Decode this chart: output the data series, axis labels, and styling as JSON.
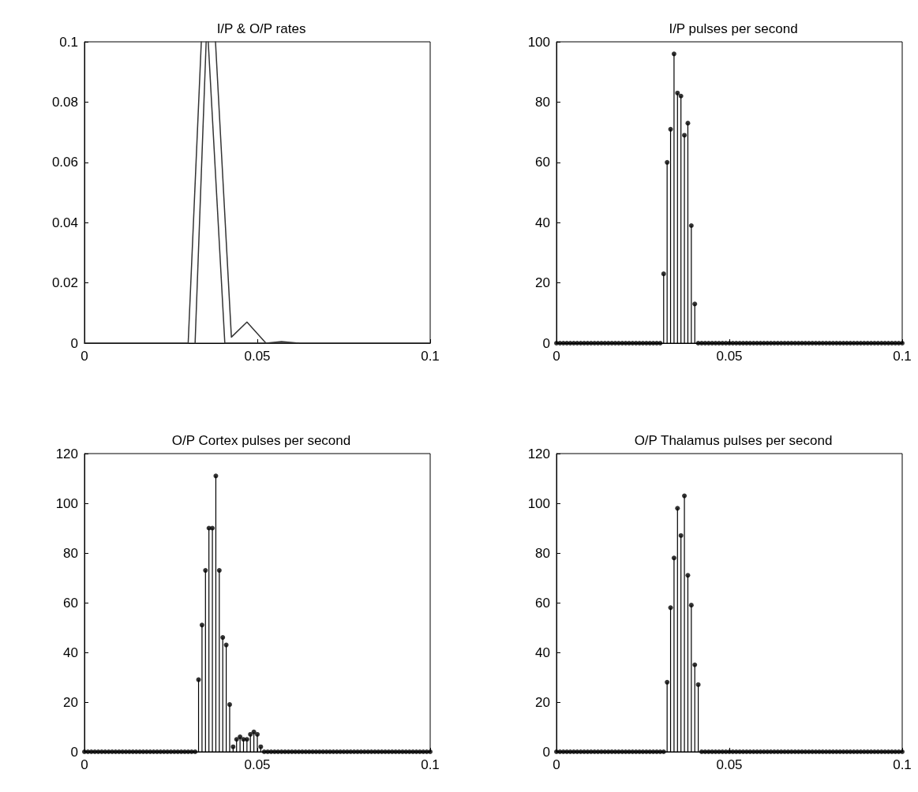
{
  "chart_data": [
    {
      "type": "line",
      "title": "I/P & O/P rates",
      "marker": "none",
      "xlim": [
        0,
        0.1
      ],
      "xticks": [
        0,
        0.05,
        0.1
      ],
      "ylim": [
        0,
        0.1
      ],
      "yticks": [
        0,
        0.02,
        0.04,
        0.06,
        0.08,
        0.1
      ],
      "series": [
        {
          "color": "#333333",
          "x": [
            0,
            0.03,
            0.0338,
            0.035,
            0.0358,
            0.0406,
            0.1
          ],
          "values": [
            0,
            0,
            0.1,
            null,
            0.1,
            0,
            0
          ]
        },
        {
          "color": "#333333",
          "x": [
            0.032,
            0.0352,
            0.037,
            0.0379,
            0.0425,
            0.047,
            0.0525,
            0.057,
            0.062
          ],
          "values": [
            0,
            0.1,
            null,
            0.1,
            0.002,
            0.007,
            0,
            0.0005,
            0
          ]
        }
      ]
    },
    {
      "type": "lollipop",
      "title": "I/P pulses per second",
      "marker": "circle",
      "xlim": [
        0,
        0.1
      ],
      "xticks": [
        0,
        0.05,
        0.1
      ],
      "ylim": [
        0,
        100
      ],
      "yticks": [
        0,
        20,
        40,
        60,
        80,
        100
      ],
      "x": [
        0,
        0.001,
        0.002,
        0.003,
        0.004,
        0.005,
        0.006,
        0.007,
        0.008,
        0.009,
        0.01,
        0.011,
        0.012,
        0.013,
        0.014,
        0.015,
        0.016,
        0.017,
        0.018,
        0.019,
        0.02,
        0.021,
        0.022,
        0.023,
        0.024,
        0.025,
        0.026,
        0.027,
        0.028,
        0.029,
        0.03,
        0.031,
        0.032,
        0.033,
        0.034,
        0.035,
        0.036,
        0.037,
        0.038,
        0.039,
        0.04,
        0.041,
        0.042,
        0.043,
        0.044,
        0.045,
        0.046,
        0.047,
        0.048,
        0.049,
        0.05,
        0.051,
        0.052,
        0.053,
        0.054,
        0.055,
        0.056,
        0.057,
        0.058,
        0.059,
        0.06,
        0.061,
        0.062,
        0.063,
        0.064,
        0.065,
        0.066,
        0.067,
        0.068,
        0.069,
        0.07,
        0.071,
        0.072,
        0.073,
        0.074,
        0.075,
        0.076,
        0.077,
        0.078,
        0.079,
        0.08,
        0.081,
        0.082,
        0.083,
        0.084,
        0.085,
        0.086,
        0.087,
        0.088,
        0.089,
        0.09,
        0.091,
        0.092,
        0.093,
        0.094,
        0.095,
        0.096,
        0.097,
        0.098,
        0.099,
        0.1
      ],
      "series": [
        {
          "color": "#000000",
          "values": [
            0,
            0,
            0,
            0,
            0,
            0,
            0,
            0,
            0,
            0,
            0,
            0,
            0,
            0,
            0,
            0,
            0,
            0,
            0,
            0,
            0,
            0,
            0,
            0,
            0,
            0,
            0,
            0,
            0,
            0,
            0,
            23,
            60,
            71,
            96,
            83,
            82,
            69,
            73,
            39,
            13,
            0,
            0,
            0,
            0,
            0,
            0,
            0,
            0,
            0,
            0,
            0,
            0,
            0,
            0,
            0,
            0,
            0,
            0,
            0,
            0,
            0,
            0,
            0,
            0,
            0,
            0,
            0,
            0,
            0,
            0,
            0,
            0,
            0,
            0,
            0,
            0,
            0,
            0,
            0,
            0,
            0,
            0,
            0,
            0,
            0,
            0,
            0,
            0,
            0,
            0,
            0,
            0,
            0,
            0,
            0,
            0,
            0,
            0,
            0,
            0
          ]
        }
      ]
    },
    {
      "type": "lollipop",
      "title": "O/P Cortex pulses per second",
      "marker": "circle",
      "xlim": [
        0,
        0.1
      ],
      "xticks": [
        0,
        0.05,
        0.1
      ],
      "ylim": [
        0,
        120
      ],
      "yticks": [
        0,
        20,
        40,
        60,
        80,
        100,
        120
      ],
      "x": [
        0,
        0.001,
        0.002,
        0.003,
        0.004,
        0.005,
        0.006,
        0.007,
        0.008,
        0.009,
        0.01,
        0.011,
        0.012,
        0.013,
        0.014,
        0.015,
        0.016,
        0.017,
        0.018,
        0.019,
        0.02,
        0.021,
        0.022,
        0.023,
        0.024,
        0.025,
        0.026,
        0.027,
        0.028,
        0.029,
        0.03,
        0.031,
        0.032,
        0.033,
        0.034,
        0.035,
        0.036,
        0.037,
        0.038,
        0.039,
        0.04,
        0.041,
        0.042,
        0.043,
        0.044,
        0.045,
        0.046,
        0.047,
        0.048,
        0.049,
        0.05,
        0.051,
        0.052,
        0.053,
        0.054,
        0.055,
        0.056,
        0.057,
        0.058,
        0.059,
        0.06,
        0.061,
        0.062,
        0.063,
        0.064,
        0.065,
        0.066,
        0.067,
        0.068,
        0.069,
        0.07,
        0.071,
        0.072,
        0.073,
        0.074,
        0.075,
        0.076,
        0.077,
        0.078,
        0.079,
        0.08,
        0.081,
        0.082,
        0.083,
        0.084,
        0.085,
        0.086,
        0.087,
        0.088,
        0.089,
        0.09,
        0.091,
        0.092,
        0.093,
        0.094,
        0.095,
        0.096,
        0.097,
        0.098,
        0.099,
        0.1
      ],
      "series": [
        {
          "color": "#000000",
          "values": [
            0,
            0,
            0,
            0,
            0,
            0,
            0,
            0,
            0,
            0,
            0,
            0,
            0,
            0,
            0,
            0,
            0,
            0,
            0,
            0,
            0,
            0,
            0,
            0,
            0,
            0,
            0,
            0,
            0,
            0,
            0,
            0,
            0,
            29,
            51,
            73,
            90,
            90,
            111,
            73,
            46,
            43,
            19,
            2,
            5,
            6,
            5,
            5,
            7,
            8,
            7,
            2,
            0,
            0,
            0,
            0,
            0,
            0,
            0,
            0,
            0,
            0,
            0,
            0,
            0,
            0,
            0,
            0,
            0,
            0,
            0,
            0,
            0,
            0,
            0,
            0,
            0,
            0,
            0,
            0,
            0,
            0,
            0,
            0,
            0,
            0,
            0,
            0,
            0,
            0,
            0,
            0,
            0,
            0,
            0,
            0,
            0,
            0,
            0,
            0,
            0
          ]
        }
      ]
    },
    {
      "type": "lollipop",
      "title": "O/P Thalamus pulses per second",
      "marker": "circle",
      "xlim": [
        0,
        0.1
      ],
      "xticks": [
        0,
        0.05,
        0.1
      ],
      "ylim": [
        0,
        120
      ],
      "yticks": [
        0,
        20,
        40,
        60,
        80,
        100,
        120
      ],
      "x": [
        0,
        0.001,
        0.002,
        0.003,
        0.004,
        0.005,
        0.006,
        0.007,
        0.008,
        0.009,
        0.01,
        0.011,
        0.012,
        0.013,
        0.014,
        0.015,
        0.016,
        0.017,
        0.018,
        0.019,
        0.02,
        0.021,
        0.022,
        0.023,
        0.024,
        0.025,
        0.026,
        0.027,
        0.028,
        0.029,
        0.03,
        0.031,
        0.032,
        0.033,
        0.034,
        0.035,
        0.036,
        0.037,
        0.038,
        0.039,
        0.04,
        0.041,
        0.042,
        0.043,
        0.044,
        0.045,
        0.046,
        0.047,
        0.048,
        0.049,
        0.05,
        0.051,
        0.052,
        0.053,
        0.054,
        0.055,
        0.056,
        0.057,
        0.058,
        0.059,
        0.06,
        0.061,
        0.062,
        0.063,
        0.064,
        0.065,
        0.066,
        0.067,
        0.068,
        0.069,
        0.07,
        0.071,
        0.072,
        0.073,
        0.074,
        0.075,
        0.076,
        0.077,
        0.078,
        0.079,
        0.08,
        0.081,
        0.082,
        0.083,
        0.084,
        0.085,
        0.086,
        0.087,
        0.088,
        0.089,
        0.09,
        0.091,
        0.092,
        0.093,
        0.094,
        0.095,
        0.096,
        0.097,
        0.098,
        0.099,
        0.1
      ],
      "series": [
        {
          "color": "#000000",
          "values": [
            0,
            0,
            0,
            0,
            0,
            0,
            0,
            0,
            0,
            0,
            0,
            0,
            0,
            0,
            0,
            0,
            0,
            0,
            0,
            0,
            0,
            0,
            0,
            0,
            0,
            0,
            0,
            0,
            0,
            0,
            0,
            0,
            28,
            58,
            78,
            98,
            87,
            103,
            71,
            59,
            35,
            27,
            0,
            0,
            0,
            0,
            0,
            0,
            0,
            0,
            0,
            0,
            0,
            0,
            0,
            0,
            0,
            0,
            0,
            0,
            0,
            0,
            0,
            0,
            0,
            0,
            0,
            0,
            0,
            0,
            0,
            0,
            0,
            0,
            0,
            0,
            0,
            0,
            0,
            0,
            0,
            0,
            0,
            0,
            0,
            0,
            0,
            0,
            0,
            0,
            0,
            0,
            0,
            0,
            0,
            0,
            0,
            0,
            0,
            0,
            0
          ]
        }
      ]
    }
  ]
}
